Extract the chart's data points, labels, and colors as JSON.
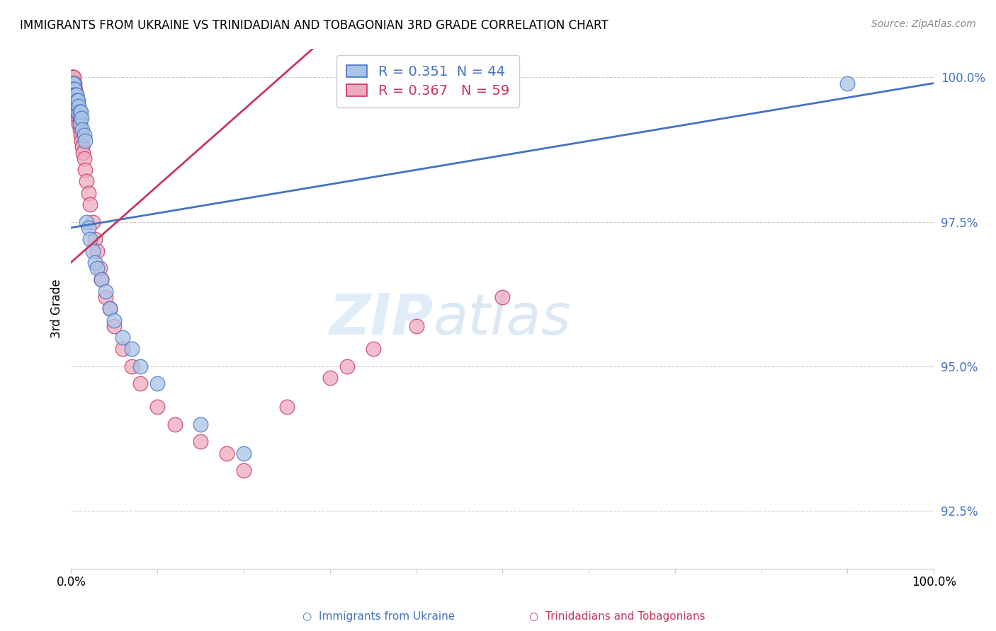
{
  "title": "IMMIGRANTS FROM UKRAINE VS TRINIDADIAN AND TOBAGONIAN 3RD GRADE CORRELATION CHART",
  "source": "Source: ZipAtlas.com",
  "ylabel": "3rd Grade",
  "xlim": [
    0.0,
    1.0
  ],
  "ylim": [
    0.915,
    1.005
  ],
  "yticks": [
    0.925,
    0.95,
    0.975,
    1.0
  ],
  "ytick_labels": [
    "92.5%",
    "95.0%",
    "97.5%",
    "100.0%"
  ],
  "xticks": [
    0.0,
    0.1,
    0.2,
    0.3,
    0.4,
    0.5,
    0.6,
    0.7,
    0.8,
    0.9,
    1.0
  ],
  "xtick_labels": [
    "0.0%",
    "",
    "",
    "",
    "",
    "",
    "",
    "",
    "",
    "",
    "100.0%"
  ],
  "ukraine_R": 0.351,
  "ukraine_N": 44,
  "tt_R": 0.367,
  "tt_N": 59,
  "ukraine_color": "#aac4e8",
  "tt_color": "#f0aac0",
  "ukraine_line_color": "#4472c4",
  "tt_line_color": "#c8355a",
  "watermark_zip": "ZIP",
  "watermark_atlas": "atlas",
  "ukraine_x": [
    0.001,
    0.001,
    0.002,
    0.002,
    0.002,
    0.003,
    0.003,
    0.003,
    0.004,
    0.004,
    0.004,
    0.005,
    0.005,
    0.006,
    0.006,
    0.007,
    0.007,
    0.008,
    0.008,
    0.009,
    0.01,
    0.01,
    0.011,
    0.012,
    0.013,
    0.015,
    0.016,
    0.018,
    0.02,
    0.022,
    0.025,
    0.028,
    0.03,
    0.035,
    0.04,
    0.045,
    0.05,
    0.06,
    0.07,
    0.08,
    0.1,
    0.15,
    0.2,
    0.9
  ],
  "ukraine_y": [
    0.999,
    0.998,
    0.999,
    0.997,
    0.998,
    0.999,
    0.998,
    0.997,
    0.998,
    0.997,
    0.996,
    0.997,
    0.996,
    0.997,
    0.995,
    0.996,
    0.994,
    0.996,
    0.994,
    0.995,
    0.994,
    0.992,
    0.994,
    0.993,
    0.991,
    0.99,
    0.989,
    0.975,
    0.974,
    0.972,
    0.97,
    0.968,
    0.967,
    0.965,
    0.963,
    0.96,
    0.958,
    0.955,
    0.953,
    0.95,
    0.947,
    0.94,
    0.935,
    0.999
  ],
  "tt_x": [
    0.001,
    0.001,
    0.001,
    0.002,
    0.002,
    0.002,
    0.002,
    0.003,
    0.003,
    0.003,
    0.003,
    0.004,
    0.004,
    0.004,
    0.005,
    0.005,
    0.005,
    0.006,
    0.006,
    0.006,
    0.007,
    0.007,
    0.008,
    0.008,
    0.009,
    0.009,
    0.01,
    0.01,
    0.011,
    0.012,
    0.013,
    0.014,
    0.015,
    0.016,
    0.018,
    0.02,
    0.022,
    0.025,
    0.028,
    0.03,
    0.033,
    0.035,
    0.04,
    0.045,
    0.05,
    0.06,
    0.07,
    0.08,
    0.1,
    0.12,
    0.15,
    0.18,
    0.2,
    0.25,
    0.3,
    0.32,
    0.35,
    0.4,
    0.5
  ],
  "tt_y": [
    1.0,
    1.0,
    0.999,
    1.0,
    0.999,
    0.999,
    0.998,
    1.0,
    0.999,
    0.998,
    0.997,
    0.999,
    0.997,
    0.996,
    0.998,
    0.997,
    0.995,
    0.997,
    0.996,
    0.994,
    0.996,
    0.994,
    0.995,
    0.993,
    0.994,
    0.992,
    0.993,
    0.991,
    0.99,
    0.989,
    0.988,
    0.987,
    0.986,
    0.984,
    0.982,
    0.98,
    0.978,
    0.975,
    0.972,
    0.97,
    0.967,
    0.965,
    0.962,
    0.96,
    0.957,
    0.953,
    0.95,
    0.947,
    0.943,
    0.94,
    0.937,
    0.935,
    0.932,
    0.943,
    0.948,
    0.95,
    0.953,
    0.957,
    0.962
  ]
}
